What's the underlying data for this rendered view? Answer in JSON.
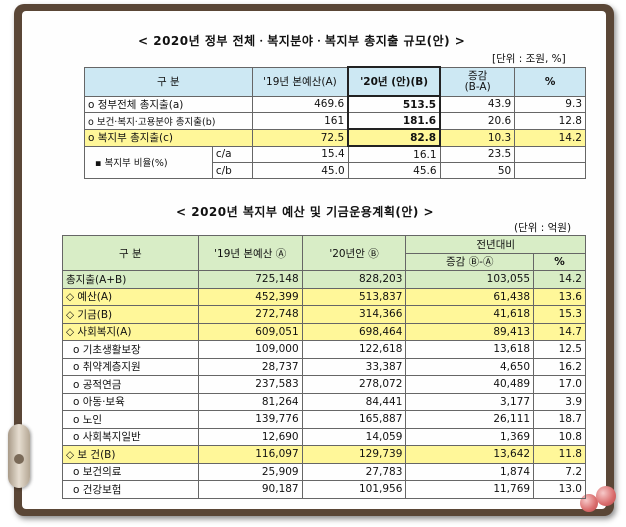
{
  "table1": {
    "title": "< 2020년 정부 전체ㆍ복지분야ㆍ복지부 총지출 규모(안) >",
    "unit": "[단위 : 조원, %]",
    "headers": {
      "category": "구 분",
      "prev": "'19년 본예산(A)",
      "curr": "'20년 (안)(B)",
      "change": "증감\n(B-A)",
      "pct": "%"
    },
    "rows": [
      {
        "label": "o 정부전체 총지출(a)",
        "prev": "469.6",
        "curr": "513.5",
        "change": "43.9",
        "pct": "9.3"
      },
      {
        "label": "o 보건·복지·고용분야 총지출(b)",
        "prev": "161",
        "curr": "181.6",
        "change": "20.6",
        "pct": "12.8"
      },
      {
        "label": "o 복지부 총지출(c)",
        "prev": "72.5",
        "curr": "82.8",
        "change": "10.3",
        "pct": "14.2"
      }
    ],
    "ratio_label": "▪ 복지부 비율(%)",
    "ratios": [
      {
        "label": "c/a",
        "prev": "15.4",
        "curr": "16.1",
        "change": "23.5"
      },
      {
        "label": "c/b",
        "prev": "45.0",
        "curr": "45.6",
        "change": "50"
      }
    ]
  },
  "table2": {
    "title": "< 2020년 복지부 예산 및 기금운용계획(안) >",
    "unit": "(단위 : 억원)",
    "headers": {
      "category": "구 분",
      "prev": "'19년 본예산 Ⓐ",
      "curr": "'20년안 Ⓑ",
      "yoy": "전년대비",
      "change": "증감 Ⓑ-Ⓐ",
      "pct": "%"
    },
    "rows": [
      {
        "label": "총지출(A+B)",
        "prev": "725,148",
        "curr": "828,203",
        "change": "103,055",
        "pct": "14.2"
      },
      {
        "label": "◇ 예산(A)",
        "prev": "452,399",
        "curr": "513,837",
        "change": "61,438",
        "pct": "13.6"
      },
      {
        "label": "◇ 기금(B)",
        "prev": "272,748",
        "curr": "314,366",
        "change": "41,618",
        "pct": "15.3"
      },
      {
        "label": "◇ 사회복지(A)",
        "prev": "609,051",
        "curr": "698,464",
        "change": "89,413",
        "pct": "14.7"
      },
      {
        "label": "o 기초생활보장",
        "prev": "109,000",
        "curr": "122,618",
        "change": "13,618",
        "pct": "12.5"
      },
      {
        "label": "o 취약계층지원",
        "prev": "28,737",
        "curr": "33,387",
        "change": "4,650",
        "pct": "16.2"
      },
      {
        "label": "o 공적연금",
        "prev": "237,583",
        "curr": "278,072",
        "change": "40,489",
        "pct": "17.0"
      },
      {
        "label": "o 아동·보육",
        "prev": "81,264",
        "curr": "84,441",
        "change": "3,177",
        "pct": "3.9"
      },
      {
        "label": "o 노인",
        "prev": "139,776",
        "curr": "165,887",
        "change": "26,111",
        "pct": "18.7"
      },
      {
        "label": "o 사회복지일반",
        "prev": "12,690",
        "curr": "14,059",
        "change": "1,369",
        "pct": "10.8"
      },
      {
        "label": "◇ 보 건(B)",
        "prev": "116,097",
        "curr": "129,739",
        "change": "13,642",
        "pct": "11.8"
      },
      {
        "label": "o 보건의료",
        "prev": "25,909",
        "curr": "27,783",
        "change": "1,874",
        "pct": "7.2"
      },
      {
        "label": "o 건강보험",
        "prev": "90,187",
        "curr": "101,956",
        "change": "11,769",
        "pct": "13.0"
      }
    ]
  }
}
